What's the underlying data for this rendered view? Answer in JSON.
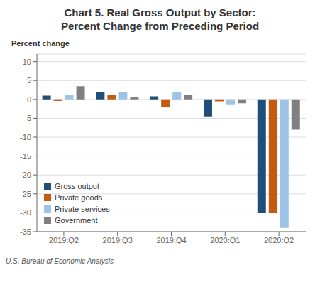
{
  "chart_data": {
    "type": "bar",
    "title": "Chart 5. Real Gross Output by Sector:",
    "subtitle": "Percent Change from Preceding Period",
    "ylabel": "Percent change",
    "annotations": [
      "U.S. Bureau of Economic Analysis"
    ],
    "categories": [
      "2019:Q2",
      "2019:Q3",
      "2019:Q4",
      "2020:Q1",
      "2020:Q2"
    ],
    "series": [
      {
        "name": "Gross output",
        "color": "#1f4e79",
        "values": [
          1.0,
          2.0,
          0.8,
          -4.5,
          -30.0
        ]
      },
      {
        "name": "Private goods",
        "color": "#c55a11",
        "values": [
          -0.4,
          1.2,
          -2.0,
          -0.5,
          -30.0
        ]
      },
      {
        "name": "Private services",
        "color": "#9dc3e6",
        "values": [
          1.2,
          2.0,
          2.0,
          -1.5,
          -34.0
        ]
      },
      {
        "name": "Government",
        "color": "#808080",
        "values": [
          3.5,
          0.7,
          1.3,
          -1.0,
          -8.0
        ]
      }
    ],
    "ylim": [
      -35,
      12
    ],
    "yticks": [
      10,
      5,
      0,
      -5,
      -10,
      -15,
      -20,
      -25,
      -30,
      -35
    ],
    "grid": true,
    "legend": "lower left"
  }
}
